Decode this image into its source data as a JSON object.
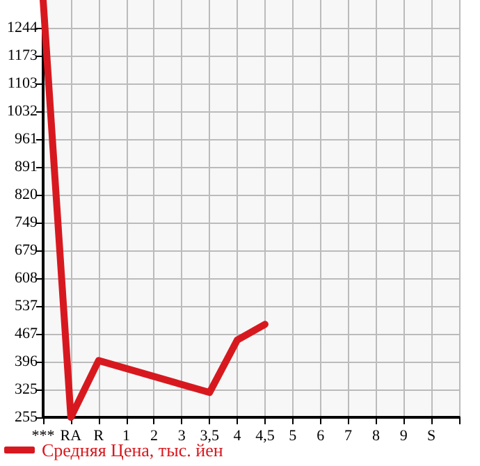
{
  "chart_data": {
    "type": "line",
    "categories": [
      "***",
      "RA",
      "R",
      "1",
      "2",
      "3",
      "3,5",
      "4",
      "4,5",
      "5",
      "6",
      "7",
      "8",
      "9",
      "S",
      null
    ],
    "series": [
      {
        "name": "Средняя Цена, тыс. йен",
        "color": "#d7191f",
        "values": [
          1314,
          255,
          399,
          null,
          null,
          null,
          318,
          451,
          491,
          null,
          null,
          null,
          null,
          null,
          null,
          null
        ]
      }
    ],
    "ylim": [
      255,
      1314
    ],
    "yticks": [
      255,
      325,
      396,
      467,
      537,
      608,
      679,
      749,
      820,
      891,
      961,
      1032,
      1103,
      1173,
      1244
    ],
    "grid": true,
    "legend": "bottom left",
    "marker": "none",
    "line_style": "solid"
  }
}
